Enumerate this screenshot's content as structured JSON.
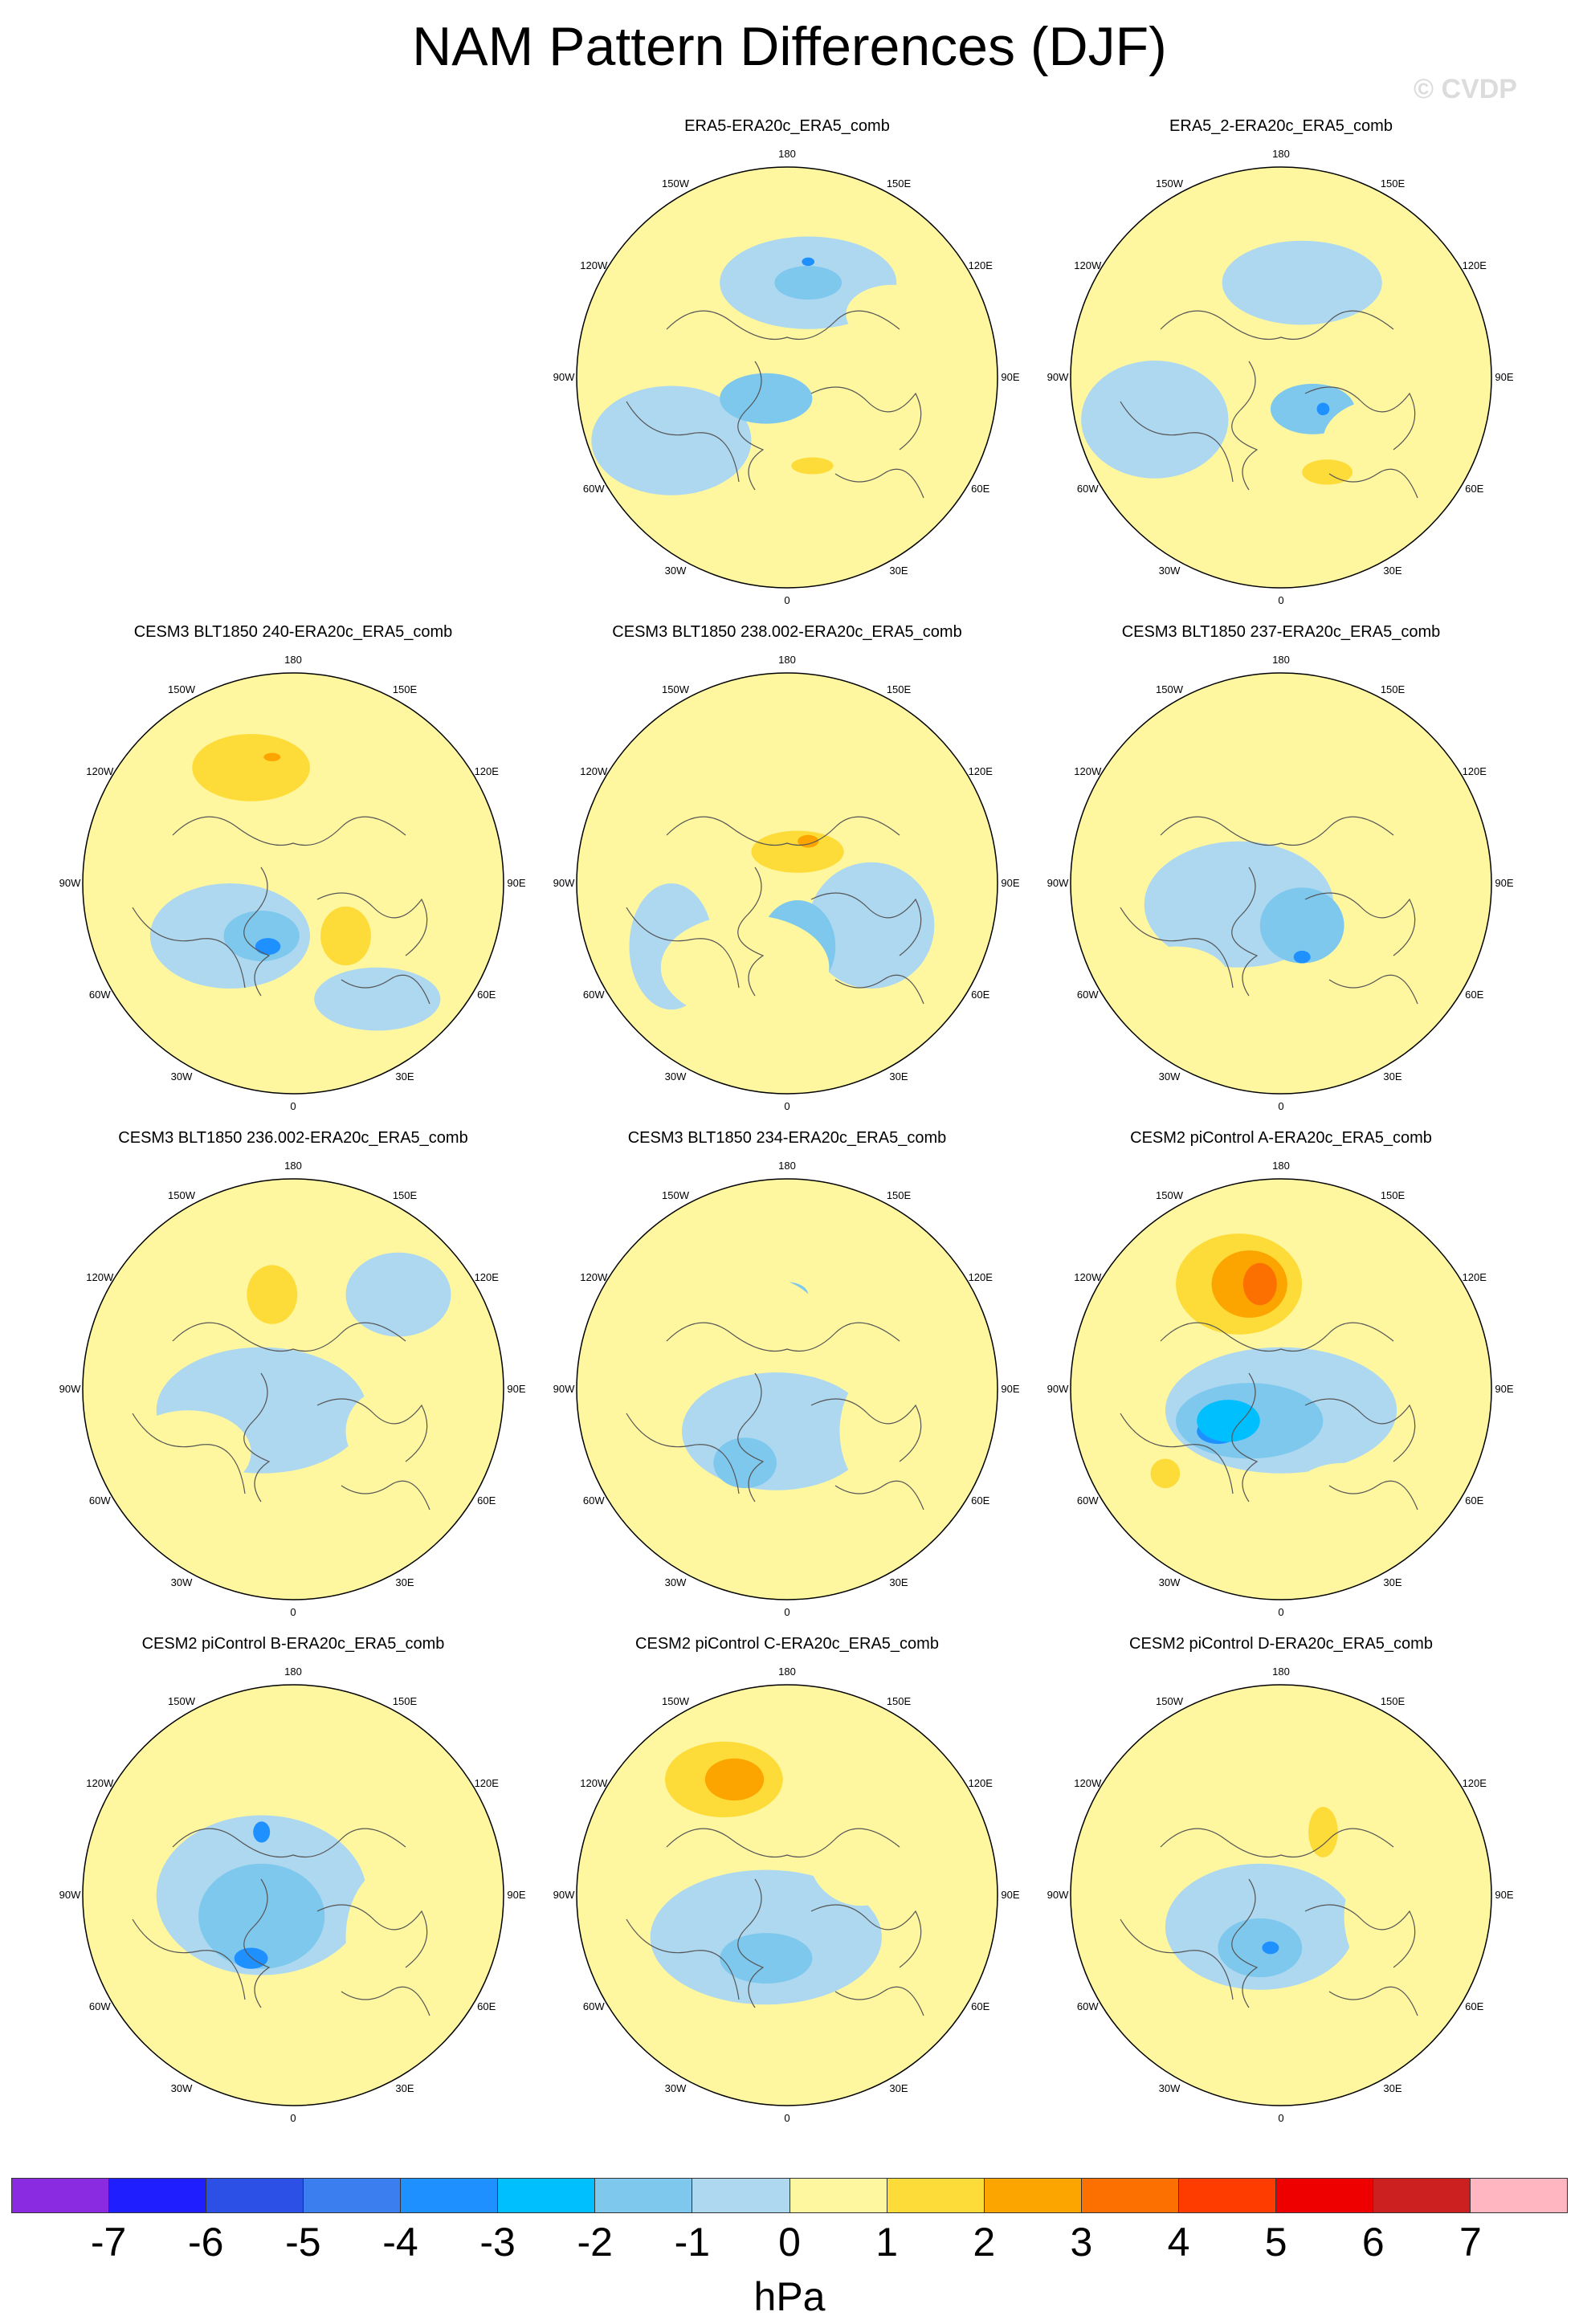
{
  "title": "NAM Pattern Differences (DJF)",
  "watermark": "© CVDP",
  "panels": [
    {
      "title": "ERA5-ERA20c_ERA5_comb",
      "highs": [
        [
          "#fff7a0",
          0.5,
          -0.3,
          0.22,
          0.14
        ],
        [
          "#fddc3a",
          0.12,
          0.42,
          0.1,
          0.04
        ]
      ],
      "lows": [
        [
          "#add8f0",
          -0.55,
          0.3,
          0.38,
          0.26
        ],
        [
          "#add8f0",
          0.1,
          -0.45,
          0.42,
          0.22
        ],
        [
          "#7ec8ee",
          -0.1,
          0.1,
          0.22,
          0.12
        ],
        [
          "#7ec8ee",
          0.1,
          -0.45,
          0.16,
          0.08
        ],
        [
          "#1e90ff",
          0.1,
          -0.55,
          0.03,
          0.02
        ]
      ]
    },
    {
      "title": "ERA5_2-ERA20c_ERA5_comb",
      "highs": [
        [
          "#fff7a0",
          0.5,
          0.3,
          0.3,
          0.2
        ],
        [
          "#fddc3a",
          0.22,
          0.45,
          0.12,
          0.06
        ]
      ],
      "lows": [
        [
          "#add8f0",
          -0.6,
          0.2,
          0.35,
          0.28
        ],
        [
          "#add8f0",
          0.1,
          -0.45,
          0.38,
          0.2
        ],
        [
          "#7ec8ee",
          0.15,
          0.15,
          0.2,
          0.12
        ],
        [
          "#1e90ff",
          0.2,
          0.15,
          0.03,
          0.03
        ]
      ]
    },
    {
      "title": "CESM3 BLT1850 240-ERA20c_ERA5_comb",
      "highs": [
        [
          "#fddc3a",
          -0.2,
          -0.55,
          0.28,
          0.16
        ],
        [
          "#fddc3a",
          0.25,
          0.25,
          0.12,
          0.14
        ],
        [
          "#fca500",
          -0.1,
          -0.6,
          0.04,
          0.02
        ]
      ],
      "lows": [
        [
          "#add8f0",
          -0.3,
          0.25,
          0.38,
          0.25
        ],
        [
          "#add8f0",
          0.4,
          0.55,
          0.3,
          0.15
        ],
        [
          "#7ec8ee",
          -0.15,
          0.25,
          0.18,
          0.12
        ],
        [
          "#1e90ff",
          -0.12,
          0.3,
          0.06,
          0.04
        ]
      ]
    },
    {
      "title": "CESM3 BLT1850 238.002-ERA20c_ERA5_comb",
      "highs": [
        [
          "#fff7a0",
          -0.2,
          0.4,
          0.4,
          0.25
        ],
        [
          "#fddc3a",
          0.05,
          -0.15,
          0.22,
          0.1
        ],
        [
          "#fca500",
          0.1,
          -0.2,
          0.05,
          0.03
        ]
      ],
      "lows": [
        [
          "#add8f0",
          -0.55,
          0.3,
          0.2,
          0.3
        ],
        [
          "#add8f0",
          0.4,
          0.2,
          0.3,
          0.3
        ],
        [
          "#7ec8ee",
          0.05,
          0.3,
          0.18,
          0.22
        ]
      ]
    },
    {
      "title": "CESM3 BLT1850 237-ERA20c_ERA5_comb",
      "highs": [
        [
          "#fff7a0",
          0.45,
          -0.15,
          0.2,
          0.18
        ],
        [
          "#fff7a0",
          -0.5,
          0.45,
          0.25,
          0.15
        ]
      ],
      "lows": [
        [
          "#add8f0",
          -0.2,
          0.1,
          0.45,
          0.3
        ],
        [
          "#7ec8ee",
          0.1,
          0.2,
          0.2,
          0.18
        ],
        [
          "#1e90ff",
          0.1,
          0.35,
          0.04,
          0.03
        ]
      ]
    },
    {
      "title": "CESM3 BLT1850 236.002-ERA20c_ERA5_comb",
      "highs": [
        [
          "#fddc3a",
          -0.1,
          -0.45,
          0.12,
          0.14
        ],
        [
          "#fff7a0",
          -0.5,
          0.3,
          0.3,
          0.2
        ],
        [
          "#fff7a0",
          0.45,
          0.2,
          0.2,
          0.2
        ]
      ],
      "lows": [
        [
          "#add8f0",
          -0.15,
          0.1,
          0.5,
          0.3
        ],
        [
          "#add8f0",
          0.5,
          -0.45,
          0.25,
          0.2
        ]
      ]
    },
    {
      "title": "CESM3 BLT1850 234-ERA20c_ERA5_comb",
      "highs": [
        [
          "#fff7a0",
          -0.2,
          -0.35,
          0.35,
          0.2
        ],
        [
          "#fff7a0",
          0.45,
          0.2,
          0.2,
          0.3
        ]
      ],
      "lows": [
        [
          "#add8f0",
          -0.05,
          0.2,
          0.45,
          0.28
        ],
        [
          "#7ec8ee",
          -0.2,
          0.35,
          0.15,
          0.12
        ],
        [
          "#7ec8ee",
          0.0,
          -0.45,
          0.1,
          0.06
        ],
        [
          "#1e90ff",
          -0.05,
          -0.45,
          0.03,
          0.02
        ]
      ]
    },
    {
      "title": "CESM2 piControl A-ERA20c_ERA5_comb",
      "highs": [
        [
          "#fddc3a",
          -0.2,
          -0.5,
          0.3,
          0.24
        ],
        [
          "#fca500",
          -0.15,
          -0.5,
          0.18,
          0.16
        ],
        [
          "#fb7000",
          -0.1,
          -0.5,
          0.08,
          0.1
        ],
        [
          "#fddc3a",
          -0.55,
          0.4,
          0.07,
          0.07
        ],
        [
          "#fff7a0",
          0.3,
          0.5,
          0.25,
          0.15
        ]
      ],
      "lows": [
        [
          "#add8f0",
          0.0,
          0.1,
          0.55,
          0.3
        ],
        [
          "#7ec8ee",
          -0.15,
          0.15,
          0.35,
          0.18
        ],
        [
          "#1e90ff",
          -0.3,
          0.2,
          0.1,
          0.06
        ],
        [
          "#00bfff",
          -0.25,
          0.15,
          0.15,
          0.1
        ]
      ]
    },
    {
      "title": "CESM2 piControl B-ERA20c_ERA5_comb",
      "highs": [
        [
          "#fff7a0",
          0.5,
          0.2,
          0.25,
          0.35
        ]
      ],
      "lows": [
        [
          "#add8f0",
          -0.15,
          0.0,
          0.5,
          0.38
        ],
        [
          "#7ec8ee",
          -0.15,
          0.1,
          0.3,
          0.25
        ],
        [
          "#1e90ff",
          -0.2,
          0.3,
          0.08,
          0.05
        ],
        [
          "#1e90ff",
          -0.15,
          -0.3,
          0.04,
          0.05
        ]
      ]
    },
    {
      "title": "CESM2 piControl C-ERA20c_ERA5_comb",
      "highs": [
        [
          "#fddc3a",
          -0.3,
          -0.55,
          0.28,
          0.18
        ],
        [
          "#fca500",
          -0.25,
          -0.55,
          0.14,
          0.1
        ],
        [
          "#fff7a0",
          0.35,
          -0.2,
          0.25,
          0.25
        ]
      ],
      "lows": [
        [
          "#add8f0",
          -0.1,
          0.2,
          0.55,
          0.32
        ],
        [
          "#7ec8ee",
          -0.1,
          0.3,
          0.22,
          0.12
        ]
      ]
    },
    {
      "title": "CESM2 piControl D-ERA20c_ERA5_comb",
      "highs": [
        [
          "#fff7a0",
          -0.25,
          -0.45,
          0.35,
          0.2
        ],
        [
          "#fddc3a",
          0.2,
          -0.3,
          0.07,
          0.12
        ],
        [
          "#fff7a0",
          0.5,
          0.1,
          0.2,
          0.3
        ]
      ],
      "lows": [
        [
          "#add8f0",
          -0.1,
          0.15,
          0.45,
          0.3
        ],
        [
          "#7ec8ee",
          -0.1,
          0.25,
          0.2,
          0.14
        ],
        [
          "#1e90ff",
          -0.05,
          0.25,
          0.04,
          0.03
        ]
      ]
    }
  ],
  "grid_labels": {
    "lon": [
      "180",
      "150E",
      "120E",
      "90E",
      "60E",
      "30E",
      "0",
      "30W",
      "60W",
      "90W",
      "120W",
      "150W"
    ]
  },
  "colorbar": {
    "colors": [
      "#8a2be2",
      "#1e1eff",
      "#2c4fe5",
      "#3a7ef0",
      "#1e90ff",
      "#00bfff",
      "#7ec8ee",
      "#add8f0",
      "#fff7a0",
      "#fddc3a",
      "#fca500",
      "#fb7000",
      "#ff3c00",
      "#ee0000",
      "#cc1f1f",
      "#ffb6c1"
    ],
    "ticks": [
      "-7",
      "-6",
      "-5",
      "-4",
      "-3",
      "-2",
      "-1",
      "0",
      "1",
      "2",
      "3",
      "4",
      "5",
      "6",
      "7"
    ],
    "units": "hPa"
  }
}
